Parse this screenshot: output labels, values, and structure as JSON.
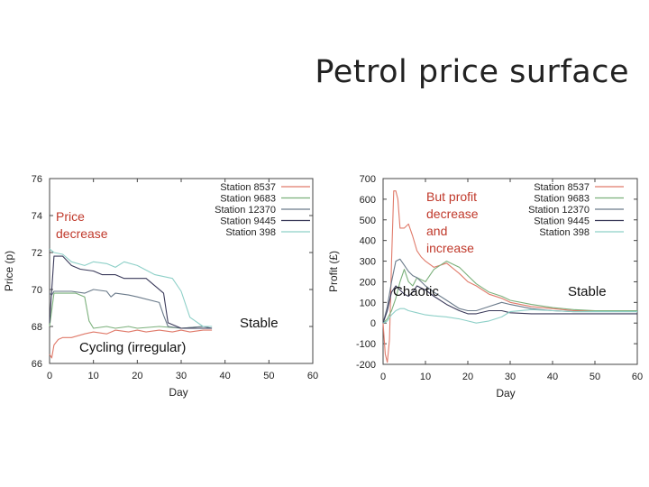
{
  "slide_title": "Petrol price surface",
  "chart_data": [
    {
      "type": "line",
      "title": "",
      "xlabel": "Day",
      "ylabel": "Price (p)",
      "xlim": [
        0,
        60
      ],
      "ylim": [
        66,
        76
      ],
      "xticks": [
        0,
        10,
        20,
        30,
        40,
        50,
        60
      ],
      "yticks": [
        66,
        68,
        70,
        72,
        74,
        76
      ],
      "legend": {
        "placement": "top-right"
      },
      "series": [
        {
          "name": "Station 8537",
          "color": "#e07a6a",
          "x": [
            0,
            0.5,
            1,
            2,
            3,
            5,
            8,
            10,
            13,
            15,
            18,
            20,
            22,
            25,
            28,
            30,
            32,
            35,
            37
          ],
          "y": [
            66.5,
            66.3,
            67,
            67.3,
            67.4,
            67.4,
            67.6,
            67.7,
            67.6,
            67.8,
            67.7,
            67.8,
            67.7,
            67.8,
            67.7,
            67.8,
            67.7,
            67.8,
            67.8
          ]
        },
        {
          "name": "Station 9683",
          "color": "#7bb07b",
          "x": [
            0,
            1,
            3,
            6,
            8,
            9,
            10,
            13,
            15,
            18,
            20,
            25,
            30,
            35,
            37
          ],
          "y": [
            68.0,
            69.8,
            69.8,
            69.8,
            69.6,
            68.3,
            67.9,
            68.0,
            67.9,
            68.0,
            67.9,
            68.0,
            67.9,
            68.0,
            68.0
          ]
        },
        {
          "name": "Station 12370",
          "color": "#6a7a8a",
          "x": [
            0,
            0.5,
            1,
            5,
            8,
            10,
            13,
            14,
            15,
            18,
            20,
            25,
            26,
            27,
            30,
            35,
            37
          ],
          "y": [
            69.8,
            69.7,
            69.9,
            69.9,
            69.8,
            70.0,
            69.9,
            69.6,
            69.8,
            69.7,
            69.6,
            69.3,
            68.6,
            68.0,
            67.9,
            68.0,
            67.9
          ]
        },
        {
          "name": "Station 9445",
          "color": "#3a3a5a",
          "x": [
            0,
            1,
            3,
            5,
            7,
            10,
            12,
            15,
            17,
            19,
            22,
            26,
            27,
            30,
            35,
            37
          ],
          "y": [
            68.2,
            71.8,
            71.8,
            71.3,
            71.1,
            71.0,
            70.8,
            70.8,
            70.6,
            70.6,
            70.6,
            69.8,
            68.2,
            67.9,
            67.9,
            67.9
          ]
        },
        {
          "name": "Station 398",
          "color": "#8ed0c8",
          "x": [
            0,
            1,
            3,
            5,
            8,
            10,
            13,
            15,
            17,
            20,
            24,
            28,
            30,
            32,
            35,
            37
          ],
          "y": [
            72.2,
            72.0,
            71.9,
            71.5,
            71.3,
            71.5,
            71.4,
            71.2,
            71.5,
            71.3,
            70.8,
            70.6,
            69.9,
            68.5,
            68.0,
            68.0
          ]
        }
      ],
      "annotations": [
        {
          "key": "price_decrease",
          "text": "Price\ndecrease"
        },
        {
          "key": "stable",
          "text": "Stable"
        },
        {
          "key": "cycling",
          "text": "Cycling (irregular)"
        }
      ]
    },
    {
      "type": "line",
      "title": "",
      "xlabel": "Day",
      "ylabel": "Profit (£)",
      "xlim": [
        0,
        60
      ],
      "ylim": [
        -200,
        700
      ],
      "xticks": [
        0,
        10,
        20,
        30,
        40,
        50,
        60
      ],
      "yticks": [
        -200,
        -100,
        0,
        100,
        200,
        300,
        400,
        500,
        600,
        700
      ],
      "legend": {
        "placement": "top-right"
      },
      "series": [
        {
          "name": "Station 8537",
          "color": "#e07a6a",
          "x": [
            0,
            0.5,
            1,
            1.5,
            2,
            2.5,
            3,
            3.5,
            4,
            5,
            6,
            7,
            8,
            9,
            10,
            12,
            15,
            18,
            20,
            22,
            25,
            28,
            30,
            35,
            40,
            45,
            50,
            55,
            60
          ],
          "y": [
            0,
            -150,
            -190,
            -80,
            300,
            640,
            640,
            600,
            460,
            460,
            480,
            420,
            350,
            320,
            300,
            270,
            290,
            240,
            200,
            180,
            140,
            120,
            100,
            80,
            70,
            60,
            60,
            60,
            60
          ]
        },
        {
          "name": "Station 9683",
          "color": "#7bb07b",
          "x": [
            0,
            1,
            2,
            3,
            4,
            5,
            6,
            7,
            8,
            10,
            12,
            15,
            18,
            20,
            22,
            25,
            28,
            30,
            35,
            40,
            45,
            50,
            55,
            60
          ],
          "y": [
            0,
            20,
            60,
            120,
            200,
            260,
            200,
            180,
            220,
            200,
            260,
            300,
            270,
            230,
            190,
            150,
            130,
            110,
            90,
            75,
            65,
            60,
            60,
            60
          ]
        },
        {
          "name": "Station 12370",
          "color": "#6a7a8a",
          "x": [
            0,
            1,
            2,
            3,
            4,
            5,
            6,
            7,
            8,
            9,
            10,
            12,
            15,
            18,
            20,
            22,
            25,
            28,
            30,
            35,
            40,
            45,
            50,
            55,
            60
          ],
          "y": [
            0,
            80,
            200,
            300,
            310,
            280,
            250,
            230,
            220,
            200,
            180,
            150,
            110,
            70,
            60,
            60,
            80,
            100,
            90,
            70,
            60,
            55,
            55,
            55,
            55
          ]
        },
        {
          "name": "Station 9445",
          "color": "#3a3a5a",
          "x": [
            0,
            1,
            2,
            3,
            4,
            5,
            6,
            7,
            8,
            10,
            12,
            15,
            18,
            20,
            22,
            25,
            28,
            30,
            35,
            40,
            45,
            50,
            55,
            60
          ],
          "y": [
            0,
            60,
            150,
            180,
            160,
            140,
            130,
            150,
            180,
            160,
            130,
            90,
            60,
            45,
            45,
            60,
            60,
            50,
            45,
            45,
            45,
            45,
            45,
            45
          ]
        },
        {
          "name": "Station 398",
          "color": "#8ed0c8",
          "x": [
            0,
            1,
            2,
            3,
            4,
            5,
            6,
            8,
            10,
            12,
            15,
            18,
            20,
            22,
            25,
            28,
            30,
            35,
            40,
            45,
            50,
            55,
            60
          ],
          "y": [
            0,
            10,
            40,
            60,
            70,
            70,
            60,
            50,
            40,
            35,
            30,
            20,
            10,
            0,
            10,
            30,
            55,
            65,
            60,
            55,
            55,
            55,
            55
          ]
        }
      ],
      "annotations": [
        {
          "key": "but_profit",
          "text": "But profit\ndecrease\nand\nincrease"
        },
        {
          "key": "chaotic",
          "text": "Chaotic"
        },
        {
          "key": "stable",
          "text": "Stable"
        }
      ]
    }
  ]
}
